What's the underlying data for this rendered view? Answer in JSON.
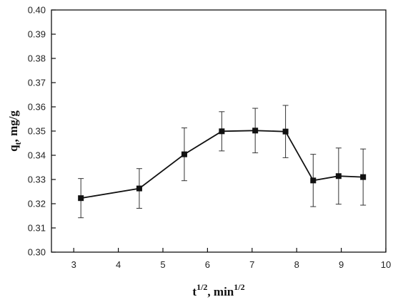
{
  "chart_data": {
    "type": "line",
    "x": [
      3.16,
      4.47,
      5.48,
      6.32,
      7.07,
      7.75,
      8.37,
      8.94,
      9.49
    ],
    "series": [
      {
        "values": [
          0.3223,
          0.3263,
          0.3404,
          0.3499,
          0.3502,
          0.3498,
          0.3296,
          0.3314,
          0.331
        ],
        "error": [
          0.0081,
          0.0082,
          0.0109,
          0.0081,
          0.0092,
          0.0108,
          0.0108,
          0.0116,
          0.0116
        ],
        "color": "#111111",
        "marker": "square"
      }
    ],
    "xlim": [
      2.5,
      10
    ],
    "ylim": [
      0.3,
      0.4
    ],
    "xticks": [
      3,
      4,
      5,
      6,
      7,
      8,
      9,
      10
    ],
    "yticks": [
      0.3,
      0.31,
      0.32,
      0.33,
      0.34,
      0.35,
      0.36,
      0.37,
      0.38,
      0.39,
      0.4
    ],
    "xlabel": {
      "base": "t",
      "sup": "1/2",
      "rest": ", min",
      "sup2": "1/2"
    },
    "ylabel": {
      "base": "q",
      "sub": "t",
      "rest": ", mg/g"
    },
    "grid": false
  }
}
